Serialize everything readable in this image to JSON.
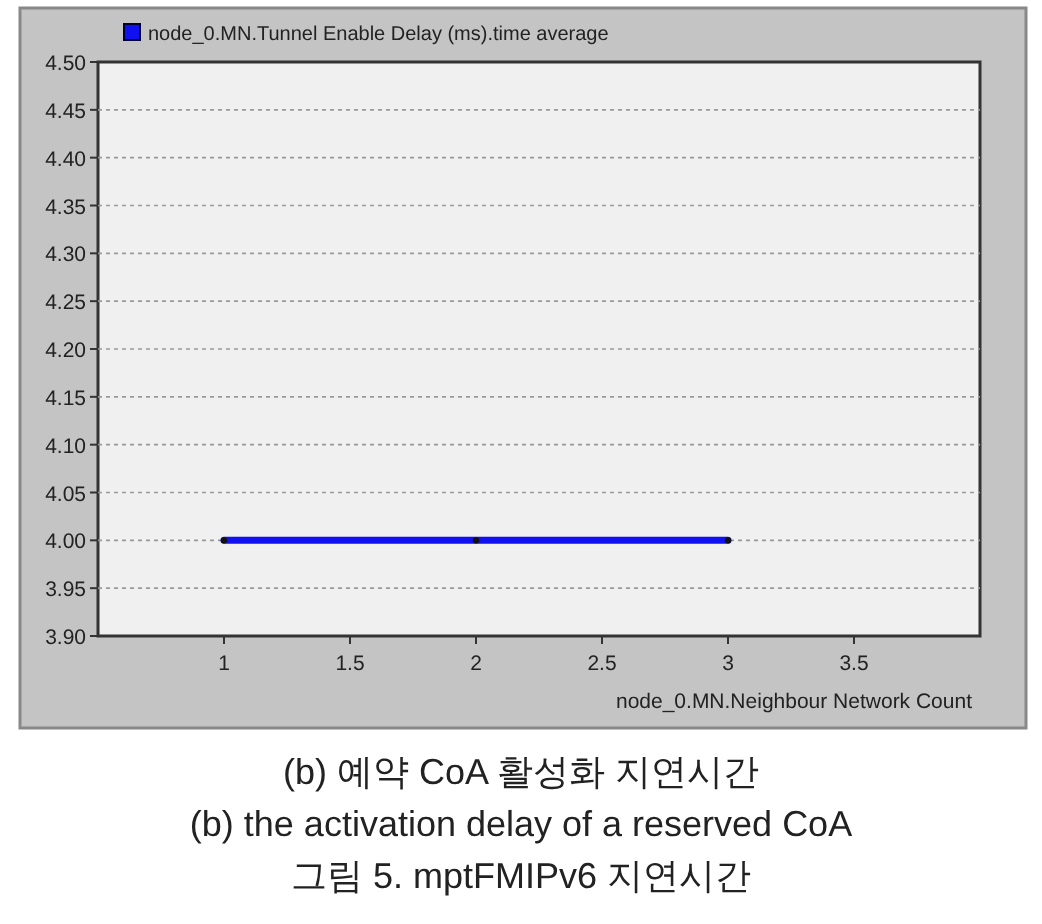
{
  "chart_data": {
    "type": "line",
    "xlabel": "node_0.MN.Neighbour Network Count",
    "x": [
      1,
      2,
      3
    ],
    "series": [
      {
        "name": "node_0.MN.Tunnel Enable Delay (ms).time average",
        "color": "#1010f0",
        "values": [
          4.0,
          4.0,
          4.0
        ]
      }
    ],
    "xlim": [
      0.5,
      4.0
    ],
    "ylim": [
      3.9,
      4.5
    ],
    "xticks": [
      1,
      1.5,
      2,
      2.5,
      3,
      3.5
    ],
    "yticks": [
      {
        "value": 3.9,
        "label": "3.90"
      },
      {
        "value": 3.95,
        "label": "3.95"
      },
      {
        "value": 4.0,
        "label": "4.00"
      },
      {
        "value": 4.05,
        "label": "4.05"
      },
      {
        "value": 4.1,
        "label": "4.10"
      },
      {
        "value": 4.15,
        "label": "4.15"
      },
      {
        "value": 4.2,
        "label": "4.20"
      },
      {
        "value": 4.25,
        "label": "4.25"
      },
      {
        "value": 4.3,
        "label": "4.30"
      },
      {
        "value": 4.35,
        "label": "4.35"
      },
      {
        "value": 4.4,
        "label": "4.40"
      },
      {
        "value": 4.45,
        "label": "4.45"
      },
      {
        "value": 4.5,
        "label": "4.50"
      }
    ],
    "grid": "y",
    "legend": "top left",
    "marker": "circle",
    "line_style": "solid",
    "annotations": [
      "(b) 예약 CoA 활성화 지연시간",
      "(b) the activation delay of a reserved CoA",
      "그림 5. mptFMIPv6 지연시간"
    ]
  }
}
